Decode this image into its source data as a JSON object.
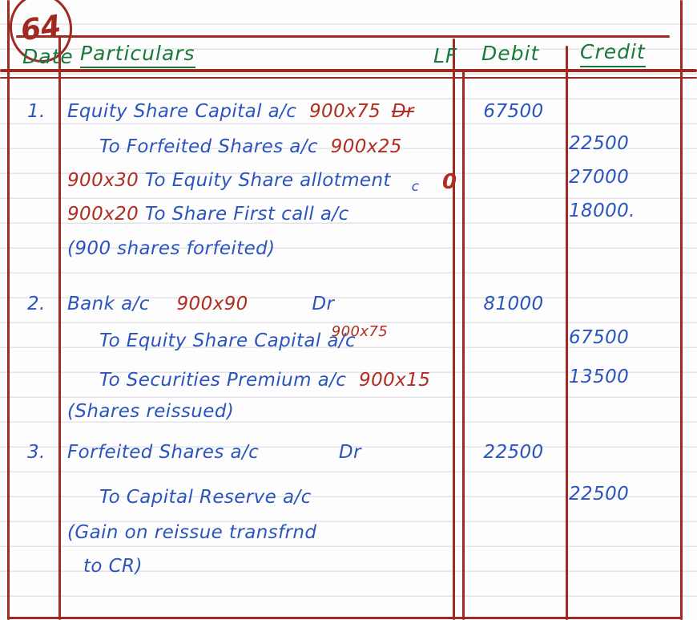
{
  "page": {
    "number": "64"
  },
  "colors": {
    "table_line": "#9e2a22",
    "header_ink": "#187a3a",
    "entry_ink": "#2b55bd",
    "annotation_ink": "#b02d22"
  },
  "header": {
    "date": "Date",
    "particulars": "Particulars",
    "lf": "LF",
    "debit": "Debit",
    "credit": "Credit"
  },
  "journal": {
    "rows": [
      {
        "date": "1.",
        "text": "Equity Share Capital a/c",
        "red_after": "900x75",
        "red_struck": "Dr",
        "debit": "67500"
      },
      {
        "text": "To Forfeited Shares a/c",
        "red_after": "900x25",
        "credit": "22500"
      },
      {
        "red_before": "900x30",
        "text": "To Equity Share allotment",
        "tail": "c",
        "lf_mark": "0",
        "credit": "27000"
      },
      {
        "red_before": "900x20",
        "text": "To Share First call a/c",
        "credit": "18000."
      },
      {
        "text": "(900 shares forfeited)"
      },
      {
        "date": "2.",
        "text": "Bank a/c",
        "red_mid": "900x90",
        "dr": "Dr",
        "debit": "81000"
      },
      {
        "text": "To Equity Share Capital a/c",
        "red_super": "900x75",
        "credit": "67500"
      },
      {
        "text": "To Securities Premium a/c",
        "red_after": "900x15",
        "credit": "13500"
      },
      {
        "text": "(Shares reissued)"
      },
      {
        "date": "3.",
        "text": "Forfeited Shares a/c",
        "dr": "Dr",
        "debit": "22500"
      },
      {
        "text": "To Capital Reserve a/c",
        "credit": "22500"
      },
      {
        "text": "(Gain on reissue transfrnd"
      },
      {
        "text": "to CR)"
      }
    ]
  }
}
